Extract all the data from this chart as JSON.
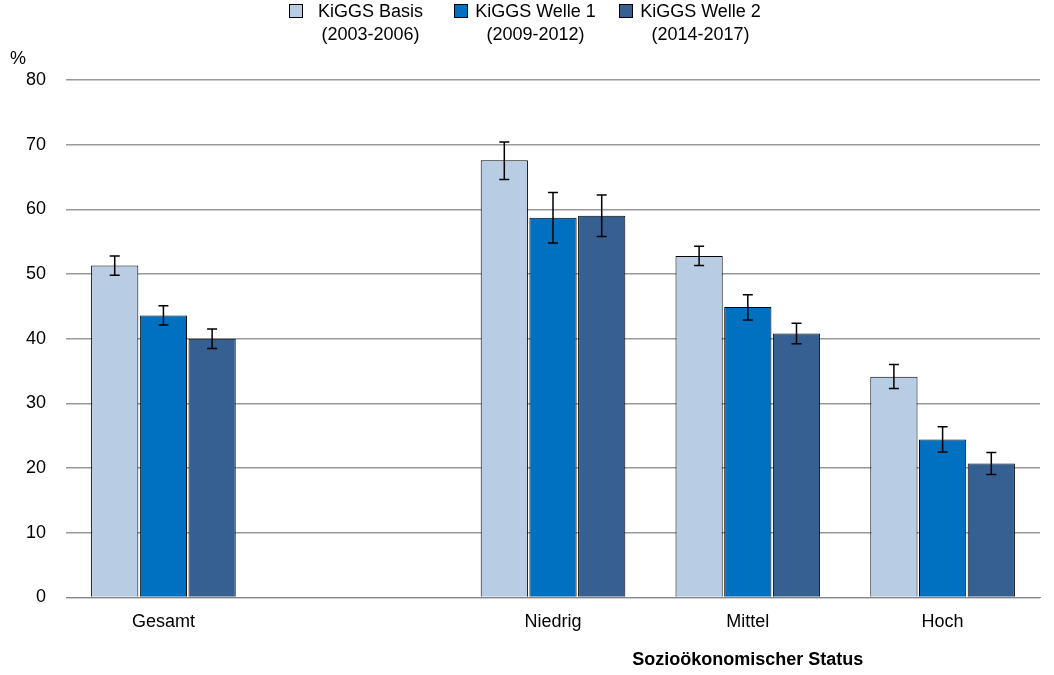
{
  "chart_data": {
    "type": "bar",
    "ylabel": "%",
    "xlabel": "Sozioökonomischer Status",
    "categories": [
      "Gesamt",
      null,
      "Niedrig",
      "Mittel",
      "Hoch"
    ],
    "series": [
      {
        "name": "KiGGS Basis (2003-2006)",
        "color": "#b8cce4",
        "values": [
          51.3,
          null,
          67.6,
          52.8,
          34.1
        ],
        "errors": [
          [
            49.8,
            52.8
          ],
          null,
          [
            64.6,
            70.4
          ],
          [
            51.3,
            54.3
          ],
          [
            32.3,
            36.0
          ]
        ]
      },
      {
        "name": "KiGGS Welle 1 (2009-2012)",
        "color": "#0070c0",
        "values": [
          43.6,
          null,
          58.7,
          44.9,
          24.4
        ],
        "errors": [
          [
            42.1,
            45.1
          ],
          null,
          [
            54.8,
            62.6
          ],
          [
            42.9,
            46.8
          ],
          [
            22.5,
            26.4
          ]
        ]
      },
      {
        "name": "KiGGS Welle 2 (2014-2017)",
        "color": "#376092",
        "values": [
          40.0,
          null,
          59.0,
          40.8,
          20.7
        ],
        "errors": [
          [
            38.5,
            41.5
          ],
          null,
          [
            55.8,
            62.2
          ],
          [
            39.2,
            42.4
          ],
          [
            19.0,
            22.4
          ]
        ]
      }
    ],
    "ylim": [
      0,
      80
    ],
    "yticks": [
      0,
      10,
      20,
      30,
      40,
      50,
      60,
      70,
      80
    ],
    "grid": "y",
    "legend": "top"
  }
}
